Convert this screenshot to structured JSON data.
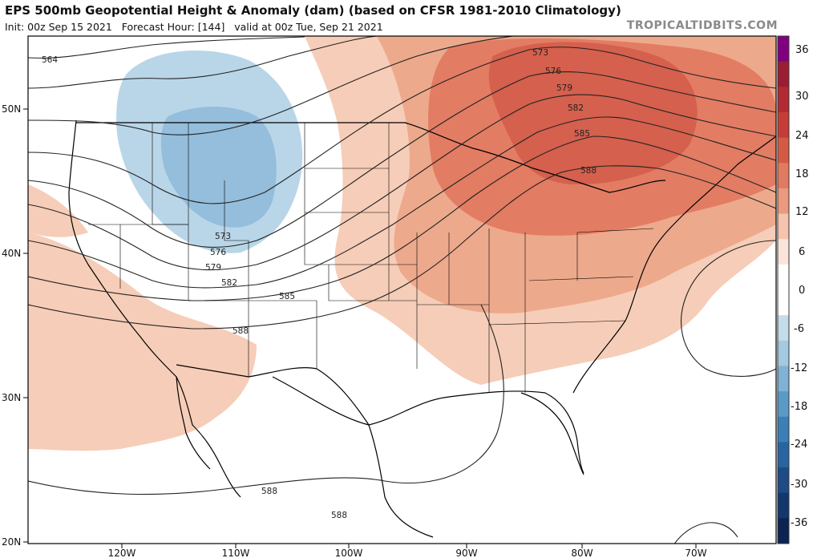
{
  "header": {
    "title": "EPS 500mb Geopotential Height & Anomaly (dam) (based on CFSR 1981-2010 Climatology)",
    "init_label": "Init: 00z Sep 15 2021",
    "forecast_label": "Forecast Hour: [144]",
    "valid_label": "valid at 00z Tue, Sep 21 2021",
    "brand": "TROPICALTIDBITS.COM"
  },
  "axes": {
    "lat_labels": [
      "50N",
      "40N",
      "30N",
      "20N"
    ],
    "lon_labels": [
      "120W",
      "110W",
      "100W",
      "90W",
      "80W",
      "70W"
    ]
  },
  "contour_labels": [
    "564",
    "573",
    "576",
    "579",
    "582",
    "585",
    "588",
    "588",
    "588",
    "573",
    "576",
    "579",
    "582",
    "585",
    "588"
  ],
  "colorbar": {
    "labels": [
      "36",
      "30",
      "24",
      "18",
      "12",
      "6",
      "0",
      "-6",
      "-12",
      "-18",
      "-24",
      "-30",
      "-36"
    ],
    "colors": [
      "#800080",
      "#9b1d32",
      "#b22b34",
      "#c43d36",
      "#d55a46",
      "#e27a5f",
      "#eb9a7f",
      "#f4c4ad",
      "#fbe4d9",
      "#ffffff",
      "#ffffff",
      "#c5dcea",
      "#a4c9e0",
      "#7fb2d4",
      "#5a9ac7",
      "#3b7fb6",
      "#2a64a0",
      "#1d4b86",
      "#13366c",
      "#0b2452"
    ]
  },
  "anomaly_colors": {
    "pos_light": "#f6cdb8",
    "pos_mid": "#eda98c",
    "pos_strong": "#e27c63",
    "pos_max": "#d4604d",
    "neg_light": "#b9d6e8",
    "neg_mid": "#94bedb"
  }
}
